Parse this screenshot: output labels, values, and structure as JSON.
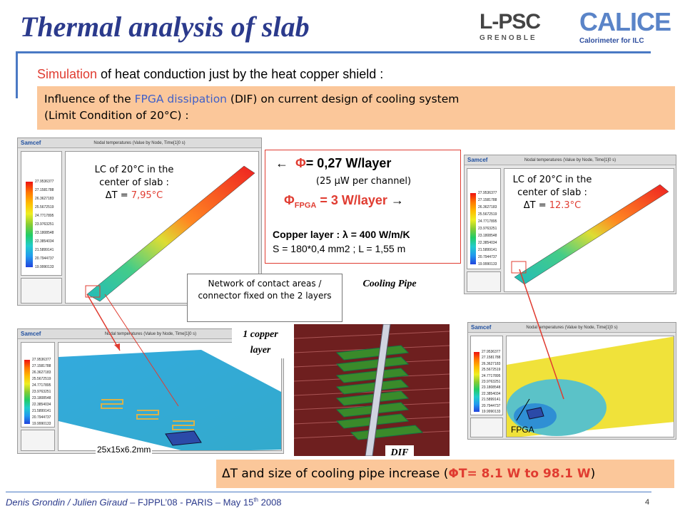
{
  "title": "Thermal analysis of slab",
  "logos": {
    "lpsc": "L-PSC",
    "lpsc_sub": "GRENOBLE",
    "calice": "CALICE",
    "calice_sub": "Calorimeter for ILC"
  },
  "simulation": {
    "prefix": "Simulation",
    "rest": " of heat conduction just by the heat copper shield :"
  },
  "influence": {
    "line1_a": "Influence of the ",
    "line1_fpga": "FPGA dissipation",
    "line1_b": " (DIF) on current design of cooling system",
    "line2": "(Limit Condition of 20°C) :"
  },
  "left_top_note": {
    "line1": "LC of 20°C in the",
    "line2": "center of slab  :",
    "dt_label": "ΔT = ",
    "dt_value": "7,95°C"
  },
  "right_top_note": {
    "line1": "LC of 20°C in the",
    "line2": "center of slab  :",
    "dt_label": "ΔT = ",
    "dt_value": "12.3°C"
  },
  "phi_box": {
    "phi_line": "= 0,27 W/layer",
    "per_channel": "(25 µW per channel)",
    "fpga_line": " = 3 W/layer",
    "fpga_sub": "FPGA",
    "copper_line1": "Copper layer : λ = 400 W/m/K",
    "copper_line2": "S = 180*0,4 mm2 ; L = 1,55 m"
  },
  "callout": "Network of contact areas / connector fixed on the      2 layers",
  "labels": {
    "cooling_pipe": "Cooling Pipe",
    "copper_layer": "1 copper layer",
    "dif": "DIF",
    "dimensions": "25x15x6.2mm",
    "fpga": "FPGA"
  },
  "bottom": {
    "prefix": "ΔT and size of cooling pipe increase (",
    "phi_part": "T= 8.1 W to 98.1 W",
    "suffix": ")"
  },
  "footer": {
    "authors": "Denis Grondin / Julien Giraud",
    "event": "  – FJPPL’08 - PARIS – May 15",
    "sup": "th",
    "year": " 2008",
    "page": "4"
  },
  "software": {
    "logo": "Samcef",
    "header": "Nodal temperatures (Value by Node, Time[1]0 s)"
  },
  "legend_values": [
    "27.9536377",
    "27.1581788",
    "26.3627183",
    "25.5672519",
    "24.7717895",
    "23.9763251",
    "23.1808548",
    "22.3854034",
    "21.5899141",
    "20.7944737",
    "19.9990133"
  ]
}
